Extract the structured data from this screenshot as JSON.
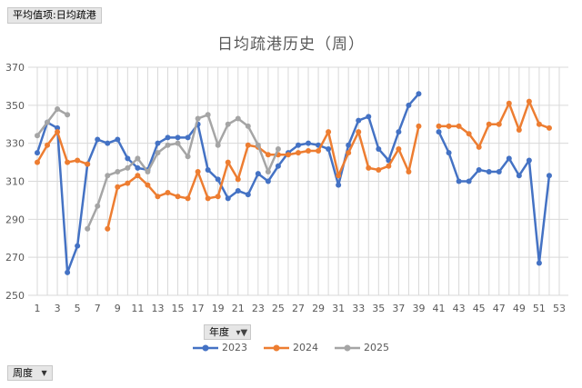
{
  "pivot": {
    "value_field": "平均值项:日均疏港",
    "series_field": "年度",
    "category_field": "周度"
  },
  "chart_data": {
    "type": "line",
    "title": "日均疏港历史（周）",
    "xlabel": "",
    "ylabel": "",
    "x": [
      1,
      2,
      3,
      4,
      5,
      6,
      7,
      8,
      9,
      10,
      11,
      12,
      13,
      14,
      15,
      16,
      17,
      18,
      19,
      20,
      21,
      22,
      23,
      24,
      25,
      26,
      27,
      28,
      29,
      30,
      31,
      32,
      33,
      34,
      35,
      36,
      37,
      38,
      39,
      40,
      41,
      42,
      43,
      44,
      45,
      46,
      47,
      48,
      49,
      50,
      51,
      52,
      53
    ],
    "x_tick_labels": [
      "1",
      "3",
      "5",
      "7",
      "9",
      "11",
      "13",
      "15",
      "17",
      "19",
      "21",
      "23",
      "25",
      "27",
      "29",
      "31",
      "33",
      "35",
      "37",
      "39",
      "41",
      "43",
      "45",
      "47",
      "49",
      "51",
      "53"
    ],
    "ylim": [
      250,
      370
    ],
    "y_ticks": [
      250,
      270,
      290,
      310,
      330,
      350,
      370
    ],
    "grid": true,
    "legend_position": "bottom",
    "series": [
      {
        "name": "2023",
        "color": "#4472c4",
        "values": [
          325,
          341,
          338,
          262,
          276,
          319,
          332,
          330,
          332,
          322,
          317,
          316,
          330,
          333,
          333,
          333,
          340,
          316,
          311,
          301,
          305,
          303,
          314,
          310,
          318,
          325,
          329,
          330,
          329,
          327,
          308,
          329,
          342,
          344,
          327,
          321,
          336,
          350,
          356,
          null,
          336,
          325,
          310,
          310,
          316,
          315,
          315,
          322,
          313,
          321,
          267,
          313,
          null
        ]
      },
      {
        "name": "2024",
        "color": "#ed7d31",
        "values": [
          320,
          329,
          336,
          320,
          321,
          319,
          null,
          285,
          307,
          309,
          313,
          308,
          302,
          304,
          302,
          301,
          315,
          301,
          302,
          320,
          311,
          329,
          328,
          324,
          324,
          324,
          325,
          326,
          326,
          336,
          313,
          325,
          336,
          317,
          316,
          318,
          327,
          315,
          339,
          null,
          339,
          339,
          339,
          335,
          328,
          340,
          340,
          351,
          337,
          352,
          340,
          338,
          null
        ]
      },
      {
        "name": "2025",
        "color": "#a5a5a5",
        "values": [
          334,
          341,
          348,
          345,
          null,
          285,
          297,
          313,
          315,
          317,
          322,
          315,
          325,
          329,
          330,
          323,
          343,
          345,
          329,
          340,
          343,
          339,
          329,
          315,
          327,
          null,
          null,
          null,
          null,
          null,
          null,
          null,
          null,
          null,
          null,
          null,
          null,
          null,
          null,
          null,
          null,
          null,
          null,
          null,
          null,
          null,
          null,
          null,
          null,
          null,
          null,
          null,
          null
        ]
      }
    ]
  }
}
